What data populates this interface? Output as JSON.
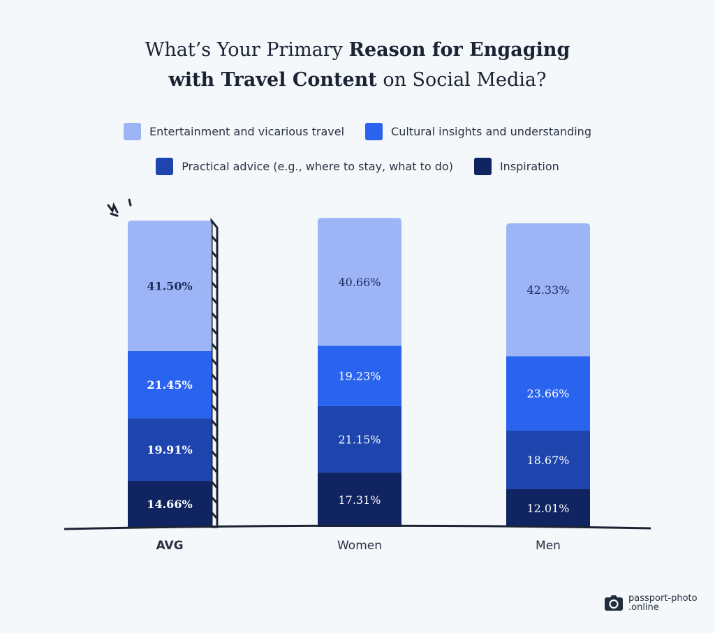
{
  "title": {
    "line1_normal": "What’s Your Primary ",
    "line1_bold": "Reason for Engaging",
    "line2_bold": "with Travel Content",
    "line2_normal": " on Social Media?"
  },
  "chart_data": {
    "type": "bar",
    "stacked": true,
    "title": "What’s Your Primary Reason for Engaging with Travel Content on Social Media?",
    "categories": [
      "AVG",
      "Women",
      "Men"
    ],
    "series": [
      {
        "name": "Inspiration",
        "color": "#0f2460",
        "values": [
          14.66,
          17.31,
          12.01
        ],
        "labels": [
          "14.66%",
          "17.31%",
          "12.01%"
        ]
      },
      {
        "name": "Practical advice (e.g., where to stay, what to do)",
        "color": "#1e45ad",
        "values": [
          19.91,
          21.15,
          18.67
        ],
        "labels": [
          "19.91%",
          "21.15%",
          "18.67%"
        ]
      },
      {
        "name": "Cultural insights and understanding",
        "color": "#2a63ee",
        "values": [
          21.45,
          19.23,
          23.66
        ],
        "labels": [
          "21.45%",
          "19.23%",
          "23.66%"
        ]
      },
      {
        "name": "Entertainment and vicarious travel",
        "color": "#9db5f7",
        "values": [
          41.5,
          40.66,
          42.33
        ],
        "labels": [
          "41.50%",
          "40.66%",
          "42.33%"
        ]
      }
    ],
    "legend_order": [
      3,
      2,
      1,
      0
    ],
    "legend_placement": "top",
    "highlighted_category": "AVG",
    "grid": false
  },
  "logo": {
    "line1": "passport-photo",
    "line2": ".online"
  }
}
